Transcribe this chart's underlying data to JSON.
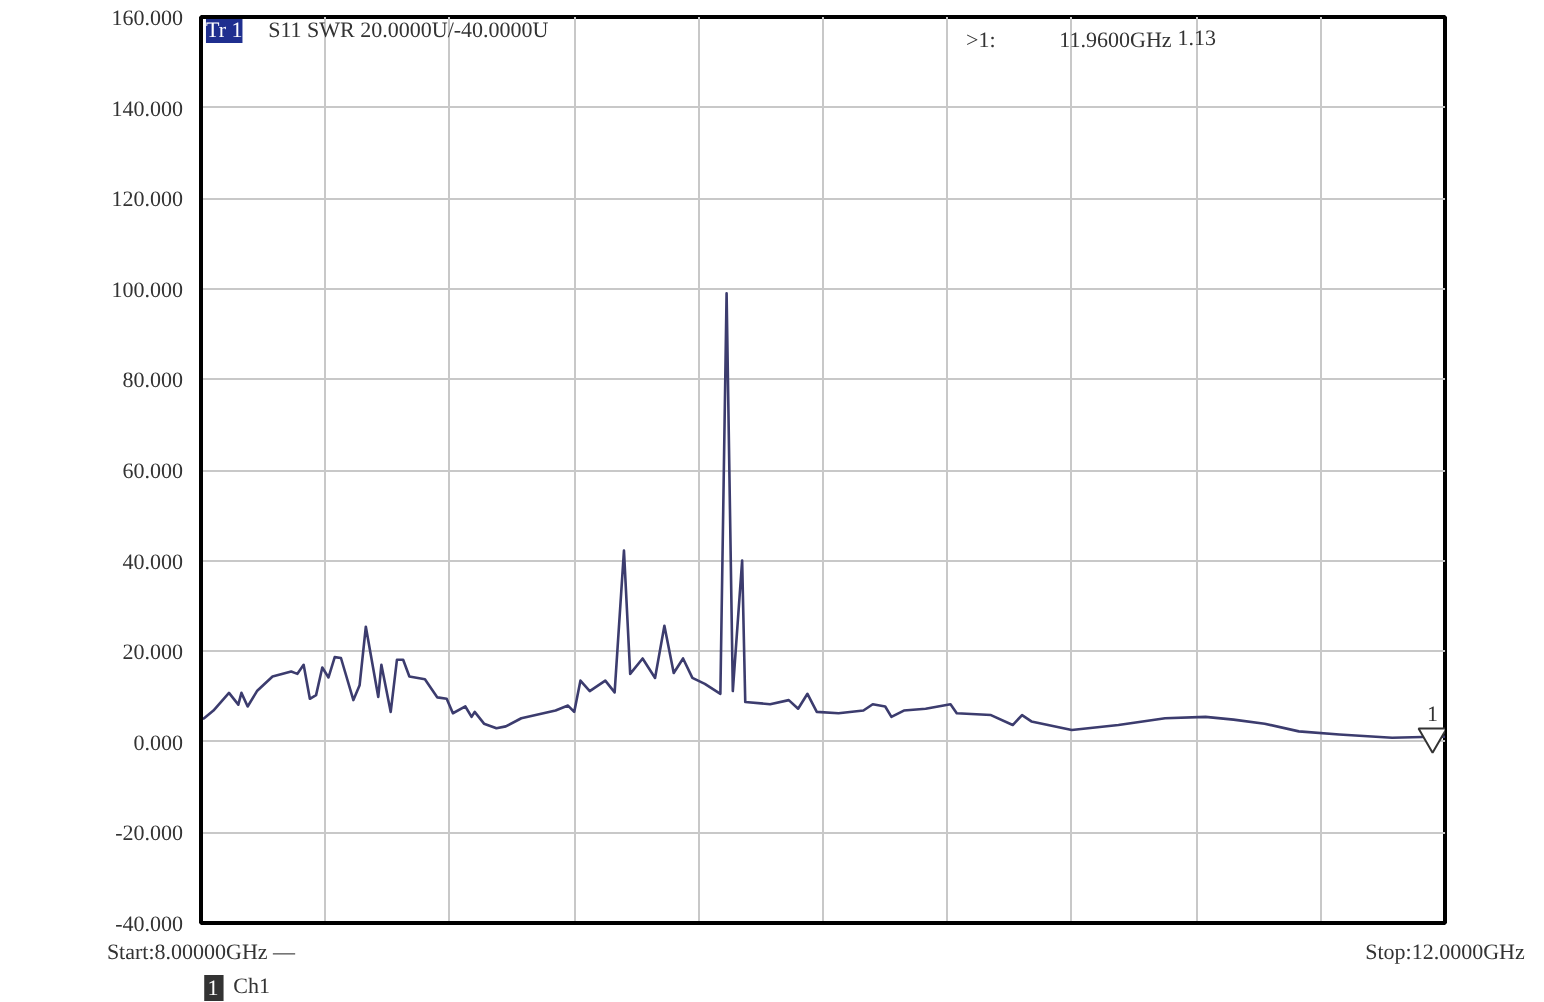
{
  "chart_data": {
    "type": "line",
    "x": [
      8.0,
      8.01,
      8.04,
      8.09,
      8.12,
      8.13,
      8.15,
      8.18,
      8.23,
      8.29,
      8.31,
      8.33,
      8.35,
      8.37,
      8.39,
      8.41,
      8.43,
      8.45,
      8.49,
      8.51,
      8.53,
      8.57,
      8.58,
      8.61,
      8.63,
      8.65,
      8.67,
      8.72,
      8.76,
      8.79,
      8.81,
      8.85,
      8.87,
      8.88,
      8.91,
      8.95,
      8.98,
      9.03,
      9.14,
      9.18,
      9.2,
      9.22,
      9.25,
      9.3,
      9.33,
      9.36,
      9.38,
      9.42,
      9.46,
      9.49,
      9.52,
      9.55,
      9.58,
      9.62,
      9.67,
      9.69,
      9.71,
      9.74,
      9.75,
      9.83,
      9.89,
      9.92,
      9.95,
      9.98,
      10.05,
      10.13,
      10.16,
      10.2,
      10.22,
      10.26,
      10.33,
      10.41,
      10.43,
      10.54,
      10.61,
      10.64,
      10.67,
      10.8,
      10.95,
      11.1,
      11.23,
      11.32,
      11.42,
      11.53,
      11.66,
      11.83,
      11.96,
      12.0
    ],
    "series": [
      {
        "color": "#3c3c6e",
        "values": [
          5.0,
          5.2,
          6.9,
          10.8,
          8.2,
          10.8,
          7.8,
          11.2,
          14.4,
          15.5,
          15.0,
          17.0,
          9.5,
          10.3,
          16.4,
          14.2,
          18.7,
          18.5,
          9.2,
          12.5,
          25.4,
          9.9,
          17.0,
          6.6,
          18.1,
          18.1,
          14.4,
          13.8,
          9.8,
          9.5,
          6.3,
          7.8,
          5.5,
          6.6,
          4.0,
          3.0,
          3.4,
          5.2,
          6.9,
          8.0,
          6.6,
          13.5,
          11.2,
          13.5,
          10.9,
          42.2,
          15.0,
          18.4,
          14.1,
          25.6,
          15.2,
          18.4,
          14.1,
          12.8,
          10.6,
          99.0,
          11.2,
          40.0,
          8.8,
          8.3,
          9.2,
          7.3,
          10.6,
          6.6,
          6.3,
          6.9,
          8.3,
          7.8,
          5.5,
          6.9,
          7.3,
          8.3,
          6.3,
          5.9,
          3.7,
          5.9,
          4.5,
          2.6,
          3.7,
          5.2,
          5.5,
          4.9,
          4.0,
          2.3,
          1.6,
          0.9,
          1.1,
          1.1
        ]
      }
    ],
    "xlim": [
      8,
      12
    ],
    "xticks": [
      {
        "value": 8,
        "label": "Start:8.00000GHz —"
      },
      {
        "value": 8.4,
        "label": null
      },
      {
        "value": 8.8,
        "label": null
      },
      {
        "value": 9.2,
        "label": null
      },
      {
        "value": 9.6,
        "label": null
      },
      {
        "value": 10,
        "label": null
      },
      {
        "value": 10.4,
        "label": null
      },
      {
        "value": 10.8,
        "label": null
      },
      {
        "value": 11.2,
        "label": null
      },
      {
        "value": 11.6,
        "label": null
      },
      {
        "value": 12,
        "label": "Stop:12.0000GHz"
      }
    ],
    "ylim": [
      -40,
      160
    ],
    "yticks": [
      {
        "value": -40,
        "label": "-40.000"
      },
      {
        "value": -20,
        "label": "-20.000"
      },
      {
        "value": 0,
        "label": "0.000"
      },
      {
        "value": 20,
        "label": "20.000"
      },
      {
        "value": 40,
        "label": "40.000"
      },
      {
        "value": 60,
        "label": "60.000"
      },
      {
        "value": 80,
        "label": "80.000"
      },
      {
        "value": 100,
        "label": "100.000"
      },
      {
        "value": 120,
        "label": "120.000"
      },
      {
        "value": 140,
        "label": "140.000"
      },
      {
        "value": 160,
        "label": "160.000"
      }
    ],
    "grid": true,
    "marker": "none",
    "line_style": "solid",
    "annotations": [
      "Tr 1",
      "S11 SWR 20.0000U/-40.0000U",
      ">1:",
      "11.9600GHz",
      "1.13",
      "1",
      "Ch1",
      {
        "text": "1",
        "x": 11.96,
        "y": 1.13
      }
    ]
  }
}
